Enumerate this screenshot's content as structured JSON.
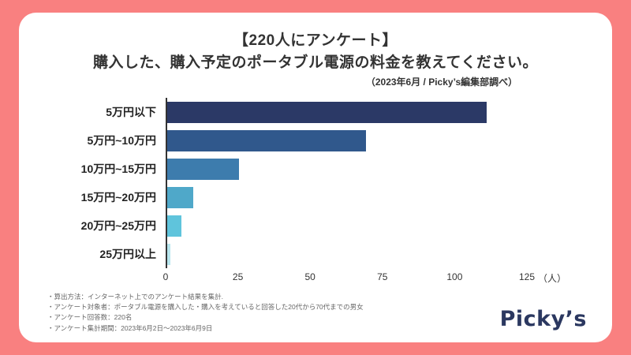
{
  "colors": {
    "background": "#F98080",
    "card": "#FFFFFF",
    "axis": "#333333",
    "logo_navy": "#2B3860"
  },
  "header": {
    "title_line1": "【220人にアンケート】",
    "title_line2": "購入した、購入予定のポータブル電源の料金を教えてください。",
    "subtitle": "（2023年6月 / Picky’s編集部調べ）"
  },
  "chart_data": {
    "type": "bar",
    "orientation": "horizontal",
    "title": "購入した、購入予定のポータブル電源の料金",
    "categories": [
      "5万円以下",
      "5万円~10万円",
      "10万円~15万円",
      "15万円~20万円",
      "20万円~25万円",
      "25万円以上"
    ],
    "values": [
      111,
      69,
      25,
      9,
      5,
      1
    ],
    "bar_colors": [
      "#2B3966",
      "#30588C",
      "#3D7CAD",
      "#4FA8C9",
      "#5FC4DC",
      "#B8E6EE"
    ],
    "xlim": [
      0,
      125
    ],
    "x_ticks": [
      "0",
      "25",
      "50",
      "75",
      "100",
      "125"
    ],
    "x_unit": "（人）",
    "grid": false,
    "legend": false
  },
  "footnotes": [
    "・算出方法：インターネット上でのアンケート結果を集計.",
    "・アンケート対象者：ポータブル電源を購入した・購入を考えていると回答した20代から70代までの男女",
    "・アンケート回答数：220名",
    "・アンケート集計期間：2023年6月2日～2023年6月9日"
  ],
  "logo": "Picky’s"
}
